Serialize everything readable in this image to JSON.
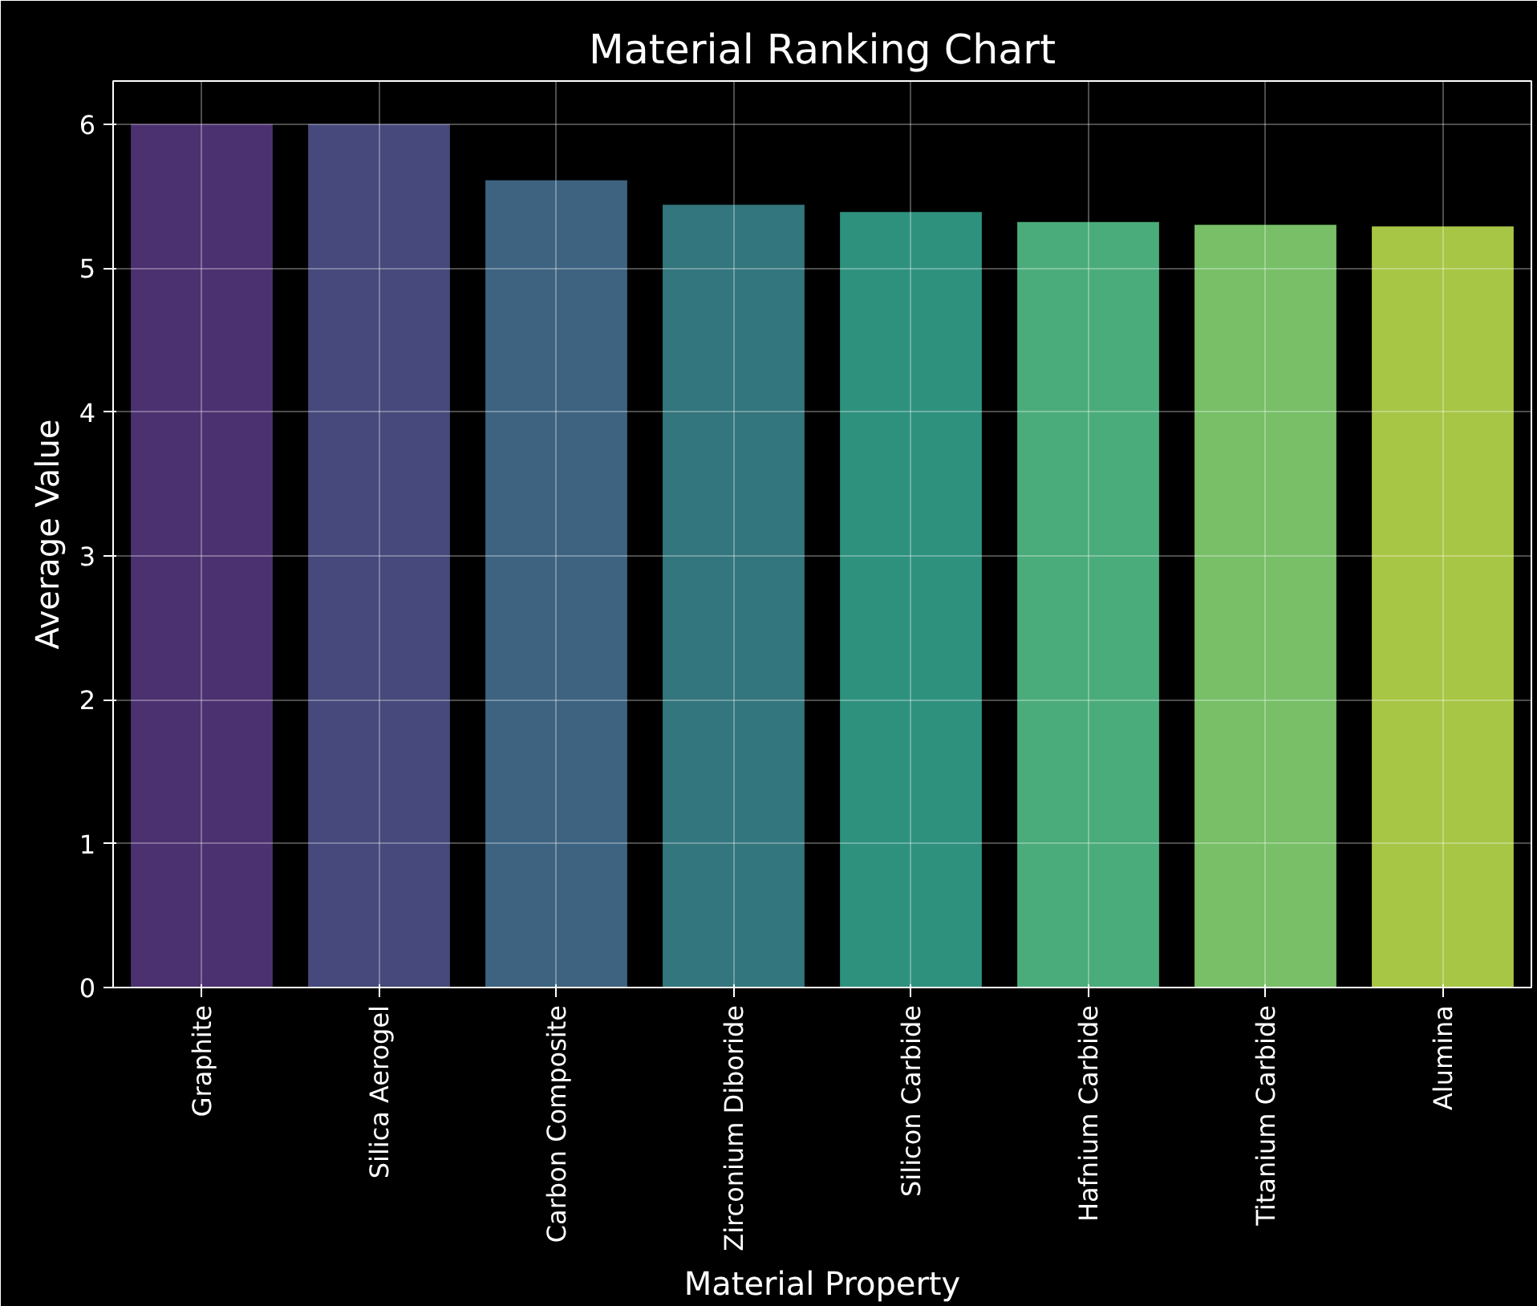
{
  "chart_data": {
    "type": "bar",
    "title": "Material Ranking Chart",
    "xlabel": "Material Property",
    "ylabel": "Average Value",
    "categories": [
      "Graphite",
      "Silica Aerogel",
      "Carbon Composite",
      "Zirconium Diboride",
      "Silicon Carbide",
      "Hafnium Carbide",
      "Titanium Carbide",
      "Alumina"
    ],
    "values": [
      6.0,
      6.0,
      5.61,
      5.44,
      5.39,
      5.32,
      5.3,
      5.29
    ],
    "colors": [
      "#4c3170",
      "#47497c",
      "#3e6380",
      "#33767d",
      "#2e917e",
      "#4aac7a",
      "#78bf68",
      "#a8c646"
    ],
    "ylim": [
      0,
      6.3
    ],
    "yticks": [
      0,
      1,
      2,
      3,
      4,
      5,
      6
    ],
    "grid": true
  }
}
